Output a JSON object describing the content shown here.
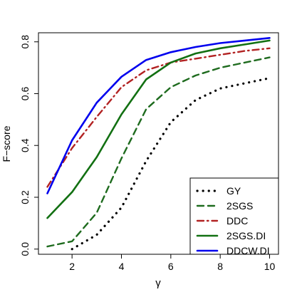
{
  "chart_data": {
    "type": "line",
    "title": "",
    "xlabel": "γ",
    "ylabel": "F−score",
    "xlim": [
      0.64,
      10.36
    ],
    "ylim": [
      -0.02,
      0.835
    ],
    "xticks": [
      2,
      4,
      6,
      8,
      10
    ],
    "yticks": [
      0.0,
      0.2,
      0.4,
      0.6,
      0.8
    ],
    "xtick_labels": [
      "2",
      "4",
      "6",
      "8",
      "10"
    ],
    "ytick_labels": [
      "0.0",
      "0.2",
      "0.4",
      "0.6",
      "0.8"
    ],
    "grid": false,
    "legend_position": "bottom-right",
    "x": [
      1,
      2,
      3,
      4,
      5,
      6,
      7,
      8,
      9,
      10
    ],
    "series": [
      {
        "name": "GY",
        "color": "#000000",
        "dash": "dotted",
        "values": [
          null,
          0.0,
          0.055,
          0.16,
          0.34,
          0.49,
          0.575,
          0.62,
          0.64,
          0.66
        ]
      },
      {
        "name": "2SGS",
        "color": "#1e6b1e",
        "dash": "dashed",
        "values": [
          0.01,
          0.03,
          0.14,
          0.35,
          0.54,
          0.625,
          0.67,
          0.7,
          0.72,
          0.74
        ]
      },
      {
        "name": "DDC",
        "color": "#b22222",
        "dash": "dashdot",
        "values": [
          0.24,
          0.39,
          0.51,
          0.625,
          0.69,
          0.72,
          0.735,
          0.75,
          0.765,
          0.775
        ]
      },
      {
        "name": "2SGS.DI",
        "color": "#127012",
        "dash": "solid",
        "values": [
          0.12,
          0.22,
          0.355,
          0.52,
          0.655,
          0.72,
          0.755,
          0.775,
          0.79,
          0.805
        ]
      },
      {
        "name": "DDCW.DI",
        "color": "#0000ee",
        "dash": "solid",
        "values": [
          0.215,
          0.42,
          0.565,
          0.665,
          0.73,
          0.76,
          0.78,
          0.795,
          0.805,
          0.815
        ]
      }
    ]
  }
}
